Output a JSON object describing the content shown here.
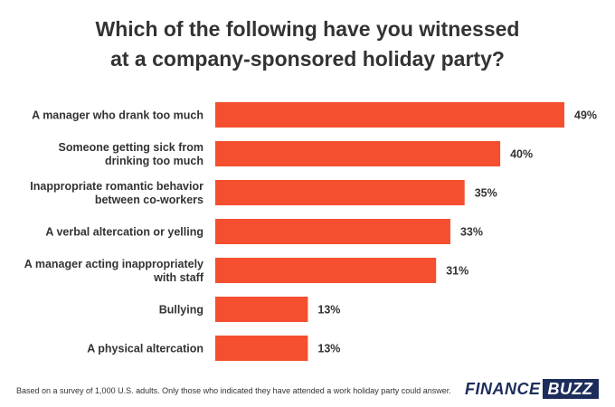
{
  "chart_data": {
    "type": "bar",
    "orientation": "horizontal",
    "title_lines": [
      "Which of the following have you witnessed",
      "at a company-sponsored holiday party?"
    ],
    "categories": [
      [
        "A manager who drank too much"
      ],
      [
        "Someone getting sick from",
        "drinking too much"
      ],
      [
        "Inappropriate romantic behavior",
        "between co-workers"
      ],
      [
        "A verbal altercation or yelling"
      ],
      [
        "A manager acting inappropriately",
        "with staff"
      ],
      [
        "Bullying"
      ],
      [
        "A physical altercation"
      ]
    ],
    "values": [
      49,
      40,
      35,
      33,
      31,
      13,
      13
    ],
    "value_labels": [
      "49%",
      "40%",
      "35%",
      "33%",
      "31%",
      "13%",
      "13%"
    ],
    "unit": "%",
    "xlim": [
      0,
      49
    ],
    "grid": false,
    "bar_color": "#f54f2f"
  },
  "footnote": "Based on a survey of 1,000 U.S. adults. Only those who indicated they have attended a work holiday party could answer.",
  "brand": {
    "part1": "FINANCE",
    "part2": "BUZZ",
    "color": "#1d2d5b"
  }
}
